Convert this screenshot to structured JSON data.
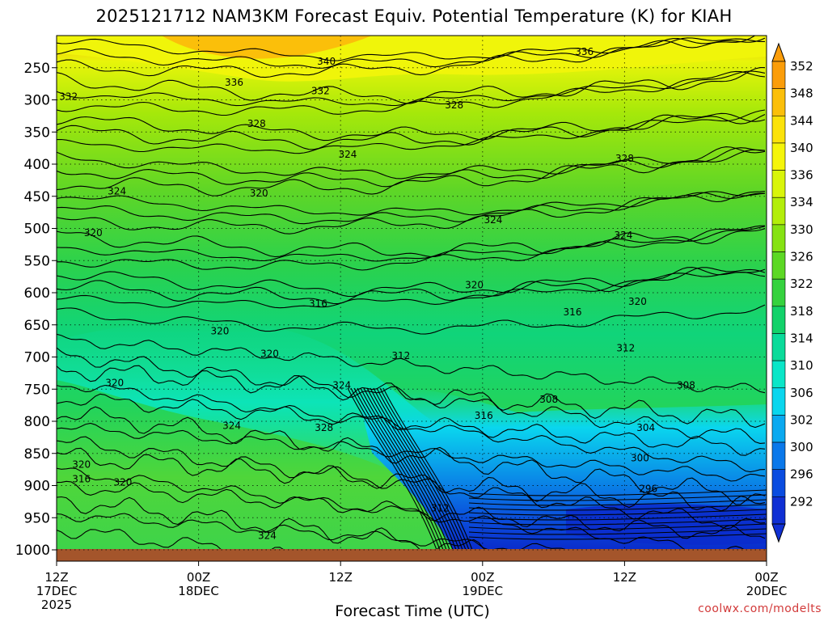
{
  "title": "2025121712 NAM3KM Forecast Equiv. Potential Temperature (K) for KIAH",
  "credit": "coolwx.com/modelts",
  "chart_data": {
    "type": "heatmap",
    "title": "2025121712 NAM3KM Forecast Equiv. Potential Temperature (K) for KIAH",
    "xlabel": "Forecast Time (UTC)",
    "ylabel": "",
    "x_ticks": [
      {
        "hour": 0,
        "lines": [
          "12Z",
          "17DEC",
          "2025"
        ]
      },
      {
        "hour": 12,
        "lines": [
          "00Z",
          "18DEC"
        ]
      },
      {
        "hour": 24,
        "lines": [
          "12Z"
        ]
      },
      {
        "hour": 36,
        "lines": [
          "00Z",
          "19DEC"
        ]
      },
      {
        "hour": 48,
        "lines": [
          "12Z"
        ]
      },
      {
        "hour": 60,
        "lines": [
          "00Z",
          "20DEC"
        ]
      }
    ],
    "y_ticks": [
      250,
      300,
      350,
      400,
      450,
      500,
      550,
      600,
      650,
      700,
      750,
      800,
      850,
      900,
      950,
      1000
    ],
    "ylim": [
      200,
      1000
    ],
    "xlim": [
      0,
      60
    ],
    "colorbar": {
      "ticks": [
        352,
        348,
        344,
        340,
        336,
        334,
        330,
        326,
        322,
        318,
        314,
        310,
        306,
        302,
        300,
        296,
        292
      ],
      "colors": [
        "#fb9d0a",
        "#fbbf0a",
        "#fbe20a",
        "#f5f50a",
        "#d9f50a",
        "#b3ee0a",
        "#86e212",
        "#5cd824",
        "#35d23e",
        "#12d26a",
        "#0adb9a",
        "#0ae6c8",
        "#0ad6ee",
        "#0aa9f0",
        "#0a78ea",
        "#0a4ce0",
        "#1030d4"
      ]
    },
    "contour_labels": [
      {
        "text": "336",
        "hour": 44.6,
        "p": 225
      },
      {
        "text": "340",
        "hour": 22.8,
        "p": 240
      },
      {
        "text": "336",
        "hour": 15.0,
        "p": 273
      },
      {
        "text": "332",
        "hour": 22.3,
        "p": 286
      },
      {
        "text": "332",
        "hour": 1.0,
        "p": 295
      },
      {
        "text": "328",
        "hour": 33.6,
        "p": 308
      },
      {
        "text": "328",
        "hour": 16.9,
        "p": 337
      },
      {
        "text": "324",
        "hour": 24.6,
        "p": 385
      },
      {
        "text": "328",
        "hour": 48.0,
        "p": 391
      },
      {
        "text": "324",
        "hour": 5.1,
        "p": 442
      },
      {
        "text": "320",
        "hour": 17.1,
        "p": 445
      },
      {
        "text": "324",
        "hour": 36.9,
        "p": 487
      },
      {
        "text": "320",
        "hour": 3.1,
        "p": 507
      },
      {
        "text": "324",
        "hour": 47.9,
        "p": 511
      },
      {
        "text": "320",
        "hour": 35.3,
        "p": 588
      },
      {
        "text": "316",
        "hour": 22.1,
        "p": 617
      },
      {
        "text": "320",
        "hour": 49.1,
        "p": 614
      },
      {
        "text": "316",
        "hour": 43.6,
        "p": 630
      },
      {
        "text": "320",
        "hour": 13.8,
        "p": 660
      },
      {
        "text": "312",
        "hour": 48.1,
        "p": 686
      },
      {
        "text": "320",
        "hour": 18.0,
        "p": 695
      },
      {
        "text": "312",
        "hour": 29.1,
        "p": 698
      },
      {
        "text": "320",
        "hour": 4.9,
        "p": 740
      },
      {
        "text": "324",
        "hour": 24.1,
        "p": 744
      },
      {
        "text": "308",
        "hour": 53.2,
        "p": 744
      },
      {
        "text": "308",
        "hour": 41.6,
        "p": 766
      },
      {
        "text": "316",
        "hour": 36.1,
        "p": 791
      },
      {
        "text": "324",
        "hour": 14.8,
        "p": 807
      },
      {
        "text": "328",
        "hour": 22.6,
        "p": 810
      },
      {
        "text": "304",
        "hour": 49.8,
        "p": 810
      },
      {
        "text": "320",
        "hour": 2.1,
        "p": 867
      },
      {
        "text": "300",
        "hour": 49.3,
        "p": 857
      },
      {
        "text": "316",
        "hour": 2.1,
        "p": 890
      },
      {
        "text": "320",
        "hour": 5.6,
        "p": 895
      },
      {
        "text": "296",
        "hour": 50.0,
        "p": 905
      },
      {
        "text": "312",
        "hour": 32.4,
        "p": 935
      },
      {
        "text": "324",
        "hour": 17.8,
        "p": 978
      }
    ]
  }
}
